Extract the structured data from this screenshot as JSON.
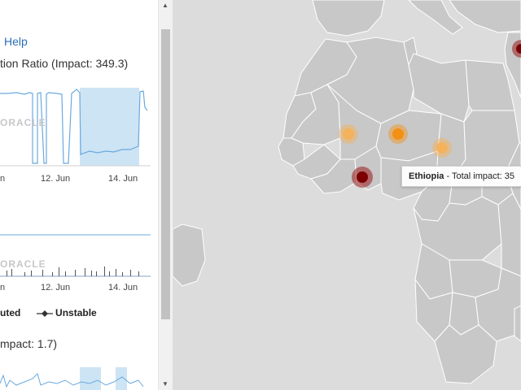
{
  "left_panel": {
    "help_link": "Help",
    "chart1_title": "tion Ratio (Impact: 349.3)",
    "chart1_ticks": [
      "n",
      "12. Jun",
      "14. Jun"
    ],
    "watermark": "ORACLE",
    "chart2_ticks": [
      "n",
      "12. Jun",
      "14. Jun"
    ],
    "legend": {
      "item1": "uted",
      "item2": "Unstable"
    },
    "chart3_title": "mpact: 1.7)"
  },
  "map": {
    "tooltip": {
      "country": "Ethiopia",
      "text": " - Total impact: 35"
    },
    "markers": [
      {
        "name": "orange-marker-1",
        "color": "#f7b055",
        "strength": "light"
      },
      {
        "name": "orange-marker-2",
        "color": "#f39014",
        "strength": "medium"
      },
      {
        "name": "orange-marker-3",
        "color": "#f7b055",
        "strength": "light"
      },
      {
        "name": "red-marker",
        "color": "#7d0000",
        "strength": "strong"
      }
    ],
    "colors": {
      "land": "#c8c8c8",
      "border": "#ffffff",
      "water": "#dcdcdc"
    }
  }
}
